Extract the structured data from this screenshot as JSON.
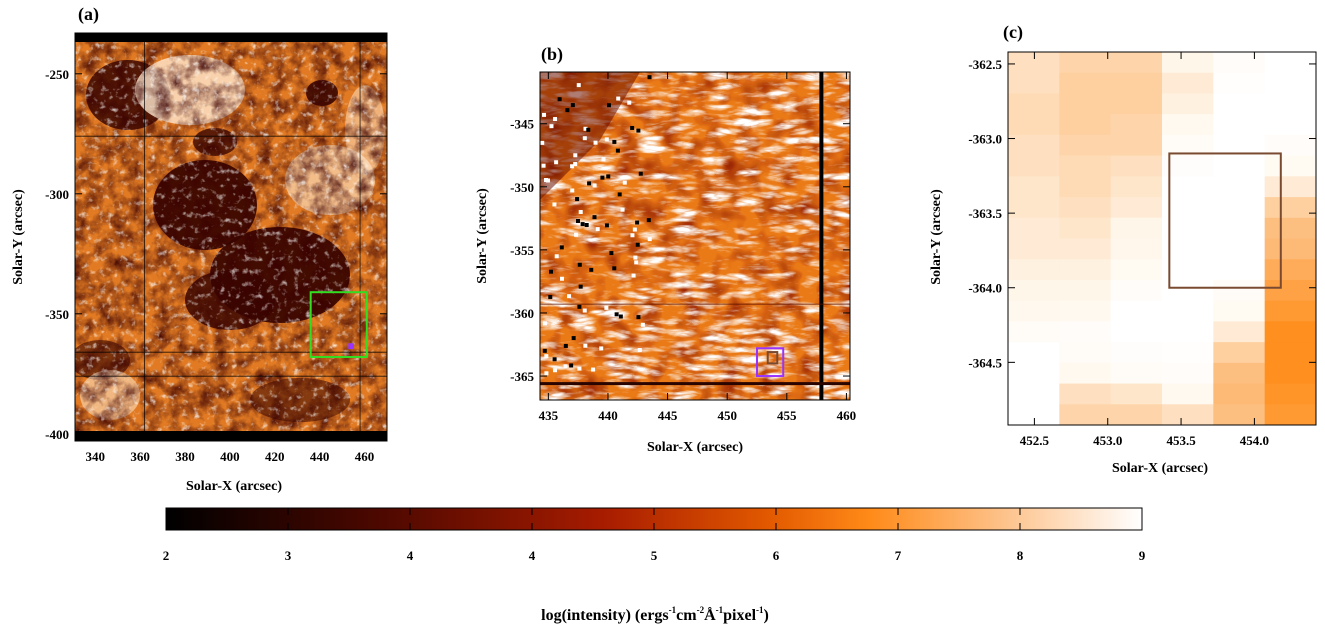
{
  "colors": {
    "colormap": [
      "#000000",
      "#5a0b00",
      "#a81c00",
      "#e15d00",
      "#ff8f1e",
      "#fdbf80",
      "#fff6ea",
      "#ffffff"
    ],
    "green_box": "#33dd22",
    "purple_box": "#9933ff",
    "brown_box": "#7a4a30",
    "grid_line": "#000000"
  },
  "chart_data": [
    {
      "type": "heatmap",
      "panel_label": "(a)",
      "xlabel": "Solar-X (arcsec)",
      "ylabel": "Solar-Y (arcsec)",
      "xlim": [
        331,
        470
      ],
      "ylim": [
        -403,
        -233
      ],
      "xticks": [
        340,
        360,
        380,
        400,
        420,
        440,
        460
      ],
      "yticks": [
        -250,
        -300,
        -350,
        -400
      ],
      "data_ylim": [
        -400,
        -236
      ],
      "grid_x": [
        362,
        458
      ],
      "grid_y": [
        -276,
        -366,
        -376
      ],
      "boxes": [
        {
          "kind": "green",
          "x": [
            436,
            461
          ],
          "y": [
            -368,
            -341
          ]
        },
        {
          "kind": "purple_dot",
          "x": [
            453,
            455
          ],
          "y": [
            -364.5,
            -362.5
          ]
        }
      ]
    },
    {
      "type": "heatmap",
      "panel_label": "(b)",
      "xlabel": "Solar-X (arcsec)",
      "ylabel": "Solar-Y (arcsec)",
      "xlim": [
        434.3,
        460.3
      ],
      "ylim": [
        -366.9,
        -340.9
      ],
      "xticks": [
        435,
        440,
        445,
        450,
        455,
        460
      ],
      "yticks": [
        -345,
        -350,
        -355,
        -360,
        -365
      ],
      "dark_column_x": 457.9,
      "dark_row_y": -365.6,
      "boxes": [
        {
          "kind": "purple",
          "x": [
            452.5,
            454.7
          ],
          "y": [
            -365,
            -362.8
          ]
        },
        {
          "kind": "brown",
          "x": [
            453.4,
            454.2
          ],
          "y": [
            -364,
            -363.1
          ]
        }
      ]
    },
    {
      "type": "heatmap",
      "panel_label": "(c)",
      "xlabel": "Solar-X (arcsec)",
      "ylabel": "Solar-Y (arcsec)",
      "xlim": [
        452.32,
        454.42
      ],
      "ylim": [
        -364.92,
        -362.42
      ],
      "xticks": [
        452.5,
        453.0,
        453.5,
        454.0
      ],
      "yticks": [
        -362.5,
        -363.0,
        -363.5,
        -364.0,
        -364.5
      ],
      "tick_labels_x": [
        "452.5",
        "453.0",
        "453.5",
        "454.0"
      ],
      "tick_labels_y": [
        "-362.5",
        "-363.0",
        "-363.5",
        "-364.0",
        "-364.5"
      ],
      "boxes": [
        {
          "kind": "brown",
          "x": [
            453.42,
            454.18
          ],
          "y": [
            -364.0,
            -363.1
          ]
        }
      ],
      "grid_values": [
        [
          7.6,
          7.4,
          7.4,
          8.0,
          8.7,
          9.0
        ],
        [
          7.6,
          7.3,
          7.3,
          7.8,
          8.9,
          9.0
        ],
        [
          7.5,
          7.3,
          7.3,
          7.9,
          9.0,
          9.0
        ],
        [
          7.5,
          7.3,
          7.4,
          8.3,
          9.0,
          9.0
        ],
        [
          7.6,
          7.4,
          7.4,
          8.6,
          9.0,
          8.7
        ],
        [
          7.6,
          7.5,
          7.6,
          8.8,
          9.0,
          8.4
        ],
        [
          7.7,
          7.5,
          7.7,
          9.0,
          9.0,
          7.8
        ],
        [
          7.7,
          7.6,
          7.8,
          9.0,
          9.0,
          7.3
        ],
        [
          7.8,
          7.7,
          8.0,
          9.0,
          9.0,
          7.0
        ],
        [
          7.8,
          7.8,
          8.1,
          9.0,
          9.0,
          6.9
        ],
        [
          7.9,
          7.9,
          8.4,
          9.0,
          9.0,
          6.6
        ],
        [
          8.0,
          8.0,
          8.7,
          9.0,
          8.6,
          6.4
        ],
        [
          8.2,
          8.3,
          9.0,
          9.0,
          8.4,
          6.2
        ],
        [
          8.6,
          8.7,
          9.0,
          9.0,
          7.8,
          6.0
        ],
        [
          9.0,
          8.6,
          8.8,
          8.9,
          7.3,
          6.0
        ],
        [
          9.0,
          8.3,
          8.6,
          8.7,
          7.0,
          6.0
        ],
        [
          9.0,
          7.6,
          7.7,
          8.3,
          6.9,
          6.1
        ],
        [
          9.0,
          7.4,
          7.4,
          7.6,
          7.0,
          6.2
        ]
      ]
    }
  ],
  "colorbar": {
    "range": [
      2,
      9
    ],
    "tick_labels": [
      "2",
      "3",
      "4",
      "4",
      "5",
      "6",
      "7",
      "8",
      "9"
    ],
    "label_main": "log(intensity) (ergs",
    "sup_1": "-1",
    "txt_2": "cm",
    "sup_2": "-2",
    "txt_3": "Å",
    "sup_3": "-1",
    "txt_4": "pixel",
    "sup_4": "-1",
    "label_end": ")"
  }
}
